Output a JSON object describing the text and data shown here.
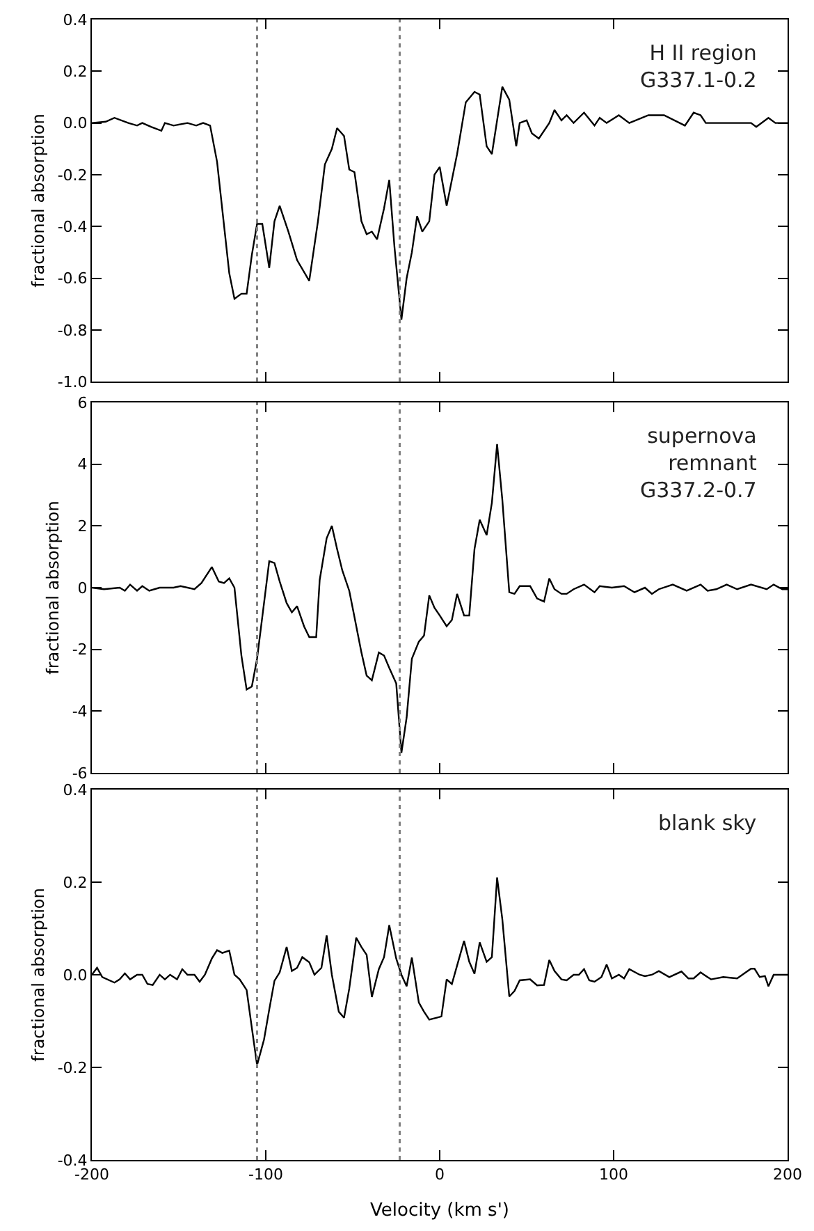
{
  "chart_data": [
    {
      "type": "line",
      "ylabel": "fractional absorption",
      "annotations": [
        "H II region\nG337.1-0.2"
      ],
      "xlim": [
        -200,
        200
      ],
      "xticks": [
        -200,
        -100,
        0,
        100,
        200
      ],
      "ylim": [
        -1.0,
        0.4
      ],
      "yticks": [
        {
          "value": -1.0,
          "label": "-1.0"
        },
        {
          "value": -0.8,
          "label": "-0.8"
        },
        {
          "value": -0.6,
          "label": "-0.6"
        },
        {
          "value": -0.4,
          "label": "-0.4"
        },
        {
          "value": -0.2,
          "label": "-0.2"
        },
        {
          "value": 0,
          "label": "0.0"
        },
        {
          "value": 0.2,
          "label": "0.2"
        },
        {
          "value": 0.4,
          "label": "0.4"
        }
      ],
      "tick_labels": "y",
      "marker": "none",
      "line_style": "solid",
      "ref_lines": [
        {
          "axis": "x",
          "value": -105,
          "color": "#808080",
          "line_style": "dotted"
        },
        {
          "axis": "x",
          "value": -23,
          "color": "#808080",
          "line_style": "dotted"
        }
      ],
      "series": [
        {
          "color": "#000000",
          "x": [
            -200,
            -192,
            -187,
            -179,
            -174,
            -171,
            -166,
            -160,
            -158,
            -153,
            -145,
            -140,
            -136,
            -132,
            -128,
            -121,
            -118,
            -114,
            -111,
            -108,
            -105,
            -102,
            -98,
            -95,
            -92,
            -87,
            -82,
            -75,
            -70,
            -66,
            -62,
            -59,
            -55,
            -52,
            -49,
            -45,
            -42,
            -39,
            -36,
            -32,
            -29,
            -26,
            -22,
            -19,
            -16,
            -13,
            -10,
            -6,
            -3,
            0,
            4,
            10,
            15,
            20,
            23,
            27,
            30,
            36,
            40,
            44,
            46,
            50,
            53,
            57,
            63,
            66,
            70,
            73,
            77,
            83,
            89,
            92,
            96,
            103,
            109,
            120,
            129,
            141,
            146,
            150,
            153,
            163,
            173,
            179,
            182,
            189,
            193,
            197,
            200
          ],
          "values": [
            0.0,
            0.005,
            0.02,
            0.0,
            -0.01,
            0.0,
            -0.015,
            -0.03,
            0.0,
            -0.01,
            0.0,
            -0.01,
            0.0,
            -0.01,
            -0.15,
            -0.58,
            -0.68,
            -0.66,
            -0.66,
            -0.51,
            -0.39,
            -0.39,
            -0.56,
            -0.38,
            -0.32,
            -0.42,
            -0.53,
            -0.61,
            -0.38,
            -0.16,
            -0.1,
            -0.02,
            -0.05,
            -0.18,
            -0.19,
            -0.38,
            -0.43,
            -0.42,
            -0.45,
            -0.33,
            -0.22,
            -0.48,
            -0.76,
            -0.6,
            -0.5,
            -0.36,
            -0.42,
            -0.38,
            -0.2,
            -0.17,
            -0.32,
            -0.12,
            0.08,
            0.12,
            0.11,
            -0.09,
            -0.12,
            0.14,
            0.09,
            -0.09,
            0.0,
            0.01,
            -0.04,
            -0.06,
            0.0,
            0.05,
            0.01,
            0.03,
            0.0,
            0.04,
            -0.01,
            0.02,
            0.0,
            0.03,
            0.0,
            0.03,
            0.03,
            -0.01,
            0.04,
            0.03,
            0.0,
            0.0,
            0.0,
            0.0,
            -0.015,
            0.02,
            0.0,
            0.0,
            0.0
          ]
        }
      ]
    },
    {
      "type": "line",
      "ylabel": "fractional absorption",
      "annotations": [
        "supernova\nremnant\nG337.2-0.7"
      ],
      "xlim": [
        -200,
        200
      ],
      "xticks": [
        -200,
        -100,
        0,
        100,
        200
      ],
      "ylim": [
        -6,
        6
      ],
      "yticks": [
        -6,
        -4,
        -2,
        0,
        2,
        4,
        6
      ],
      "tick_labels": "y",
      "marker": "none",
      "line_style": "solid",
      "ref_lines": [
        {
          "axis": "x",
          "value": -105,
          "color": "#808080",
          "line_style": "dotted"
        },
        {
          "axis": "x",
          "value": -23,
          "color": "#808080",
          "line_style": "dotted"
        }
      ],
      "series": [
        {
          "color": "#000000",
          "x": [
            -200,
            -193,
            -184,
            -181,
            -178,
            -174,
            -171,
            -167,
            -161,
            -153,
            -149,
            -141,
            -137,
            -131,
            -127,
            -124,
            -121,
            -118,
            -114,
            -111,
            -108,
            -105,
            -101,
            -98,
            -95,
            -92,
            -88,
            -85,
            -82,
            -78,
            -75,
            -71,
            -69,
            -65,
            -62,
            -59,
            -56,
            -52,
            -49,
            -45,
            -42,
            -39,
            -35,
            -32,
            -29,
            -25,
            -22,
            -19,
            -16,
            -12,
            -9,
            -6,
            -3,
            0,
            4,
            7,
            10,
            14,
            17,
            20,
            23,
            27,
            30,
            33,
            36,
            40,
            43,
            46,
            52,
            56,
            60,
            63,
            66,
            70,
            73,
            77,
            83,
            89,
            92,
            99,
            106,
            112,
            118,
            122,
            126,
            134,
            142,
            150,
            154,
            159,
            165,
            171,
            179,
            188,
            192,
            197,
            200
          ],
          "values": [
            0,
            -0.05,
            0,
            -0.1,
            0.1,
            -0.1,
            0.05,
            -0.1,
            0,
            0,
            0.05,
            -0.05,
            0.15,
            0.67,
            0.2,
            0.15,
            0.3,
            0,
            -2.2,
            -3.3,
            -3.2,
            -2.3,
            -0.5,
            0.86,
            0.8,
            0.2,
            -0.5,
            -0.8,
            -0.6,
            -1.25,
            -1.6,
            -1.6,
            0.25,
            1.6,
            2.0,
            1.25,
            0.56,
            -0.1,
            -0.95,
            -2.1,
            -2.85,
            -3.0,
            -2.1,
            -2.2,
            -2.6,
            -3.1,
            -5.35,
            -4.2,
            -2.3,
            -1.75,
            -1.55,
            -0.25,
            -0.65,
            -0.9,
            -1.25,
            -1.05,
            -0.2,
            -0.9,
            -0.9,
            1.25,
            2.2,
            1.7,
            2.75,
            4.65,
            2.85,
            -0.15,
            -0.2,
            0.05,
            0.05,
            -0.35,
            -0.45,
            0.3,
            -0.05,
            -0.2,
            -0.2,
            -0.05,
            0.1,
            -0.15,
            0.05,
            0,
            0.05,
            -0.15,
            0,
            -0.2,
            -0.05,
            0.1,
            -0.1,
            0.1,
            -0.1,
            -0.05,
            0.1,
            -0.05,
            0.1,
            -0.05,
            0.1,
            -0.05,
            -0.05
          ]
        }
      ]
    },
    {
      "type": "line",
      "ylabel": "fractional absorption",
      "xlabel": "Velocity (km s')",
      "annotations": [
        "blank sky"
      ],
      "xlim": [
        -200,
        200
      ],
      "xticks": [
        {
          "value": -200,
          "label": "-200"
        },
        {
          "value": -100,
          "label": "-100"
        },
        0,
        100,
        200
      ],
      "ylim": [
        -0.4,
        0.4
      ],
      "yticks": [
        {
          "value": -0.4,
          "label": "-0.4"
        },
        {
          "value": -0.2,
          "label": "-0.2"
        },
        {
          "value": 0,
          "label": "0.0"
        },
        {
          "value": 0.2,
          "label": "0.2"
        },
        {
          "value": 0.4,
          "label": "0.4"
        }
      ],
      "marker": "none",
      "line_style": "solid",
      "ref_lines": [
        {
          "axis": "x",
          "value": -105,
          "color": "#808080",
          "line_style": "dotted"
        },
        {
          "axis": "x",
          "value": -23,
          "color": "#808080",
          "line_style": "dotted"
        }
      ],
      "series": [
        {
          "color": "#000000",
          "x": [
            -200,
            -197,
            -194,
            -187,
            -184,
            -181,
            -178,
            -174,
            -171,
            -168,
            -165,
            -161,
            -158,
            -155,
            -151,
            -148,
            -145,
            -141,
            -138,
            -135,
            -131,
            -128,
            -125,
            -121,
            -118,
            -115,
            -111,
            -108,
            -105,
            -101,
            -98,
            -95,
            -92,
            -88,
            -85,
            -82,
            -79,
            -75,
            -72,
            -68,
            -65,
            -62,
            -58,
            -55,
            -52,
            -48,
            -45,
            -42,
            -39,
            -35,
            -32,
            -29,
            -25,
            -22,
            -19,
            -16,
            -12,
            -9,
            -6,
            -2,
            1,
            4,
            7,
            14,
            17,
            20,
            23,
            27,
            30,
            33,
            36,
            40,
            43,
            46,
            52,
            56,
            60,
            63,
            66,
            70,
            73,
            77,
            80,
            83,
            86,
            89,
            93,
            96,
            99,
            103,
            106,
            109,
            115,
            118,
            122,
            126,
            132,
            139,
            143,
            146,
            150,
            152,
            156,
            163,
            171,
            179,
            181,
            184,
            187,
            189,
            192,
            197,
            200
          ],
          "values": [
            0,
            0.015,
            -0.005,
            -0.017,
            -0.01,
            0.003,
            -0.01,
            0,
            0,
            -0.02,
            -0.022,
            0,
            -0.01,
            0,
            -0.01,
            0.012,
            0,
            0,
            -0.015,
            0,
            0.035,
            0.053,
            0.047,
            0.052,
            0,
            -0.01,
            -0.033,
            -0.115,
            -0.195,
            -0.14,
            -0.075,
            -0.013,
            0.005,
            0.06,
            0.008,
            0.015,
            0.038,
            0.027,
            0,
            0.015,
            0.085,
            0,
            -0.08,
            -0.093,
            -0.03,
            0.08,
            0.06,
            0.043,
            -0.048,
            0.012,
            0.038,
            0.107,
            0.035,
            0,
            -0.025,
            0.037,
            -0.06,
            -0.08,
            -0.097,
            -0.093,
            -0.09,
            -0.01,
            -0.02,
            0.073,
            0.028,
            0.002,
            0.07,
            0.028,
            0.038,
            0.21,
            0.12,
            -0.047,
            -0.035,
            -0.012,
            -0.01,
            -0.023,
            -0.022,
            0.032,
            0.008,
            -0.01,
            -0.012,
            0,
            0,
            0.012,
            -0.012,
            -0.015,
            -0.005,
            0.022,
            -0.008,
            0,
            -0.008,
            0.012,
            0,
            -0.003,
            0,
            0.008,
            -0.005,
            0.007,
            -0.008,
            -0.008,
            0.005,
            0,
            -0.01,
            -0.005,
            -0.008,
            0.013,
            0.013,
            -0.005,
            -0.003,
            -0.025,
            0,
            0,
            0
          ]
        }
      ]
    }
  ]
}
